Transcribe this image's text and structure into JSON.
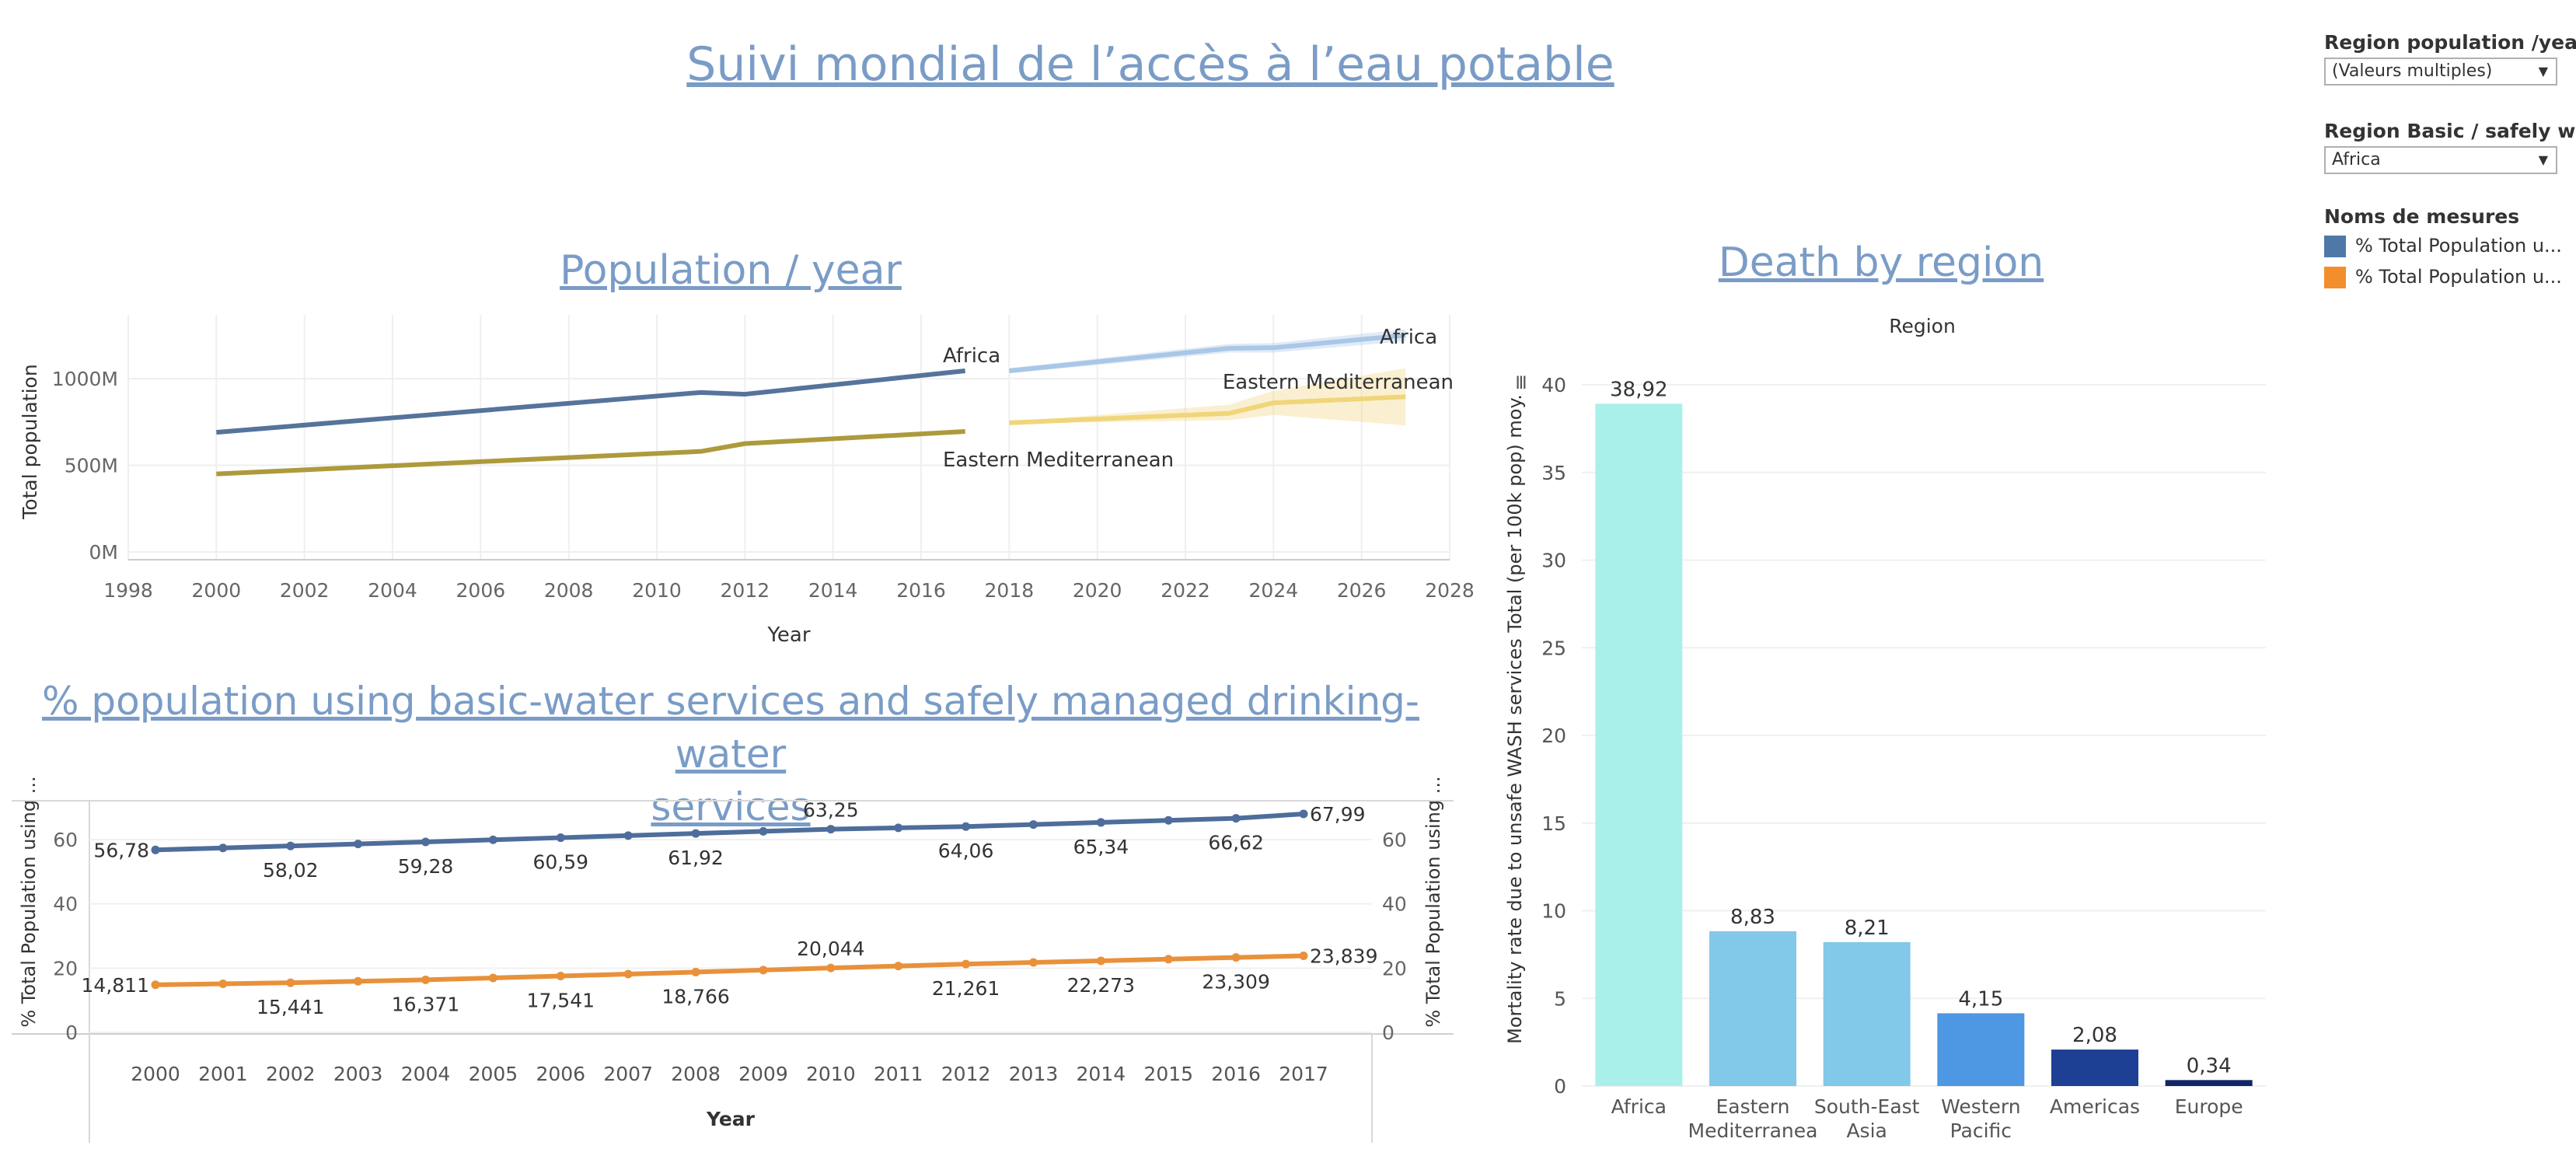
{
  "titles": {
    "main": "Suivi mondial de l’accès à l’eau potable",
    "population": "Population / year",
    "death": "Death by region",
    "pct_line1": "% population using basic-water services and safely managed drinking-water",
    "pct_line2": "services"
  },
  "filters": {
    "region_pop_label": "Region population /year",
    "region_pop_value": "(Valeurs multiples)",
    "region_basic_label": "Region Basic / safely wat...",
    "region_basic_value": "Africa"
  },
  "legend": {
    "title": "Noms de mesures",
    "items": [
      {
        "label": "% Total Population u...",
        "color": "#4e79a7"
      },
      {
        "label": "% Total Population u...",
        "color": "#f28e2b"
      }
    ]
  },
  "chart_data": [
    {
      "type": "line",
      "title": "Population / year",
      "xlabel": "Year",
      "ylabel": "Total population",
      "xlim": [
        1998,
        2028
      ],
      "x_ticks": [
        "1998",
        "2000",
        "2002",
        "2004",
        "2006",
        "2008",
        "2010",
        "2012",
        "2014",
        "2016",
        "2018",
        "2020",
        "2022",
        "2024",
        "2026",
        "2028"
      ],
      "y_ticks": [
        "0M",
        "500M",
        "1000M"
      ],
      "ylim": [
        0,
        1300
      ],
      "series": [
        {
          "name": "Africa",
          "color": "#56739b",
          "x": [
            2000,
            2011,
            2012,
            2017
          ],
          "y": [
            690,
            920,
            910,
            1045
          ]
        },
        {
          "name": "Eastern Mediterranean",
          "color": "#ad9a3c",
          "x": [
            2000,
            2011,
            2012,
            2017
          ],
          "y": [
            450,
            580,
            625,
            695
          ]
        }
      ],
      "forecast": [
        {
          "name": "Africa",
          "color": "#a9c7e6",
          "x": [
            2018,
            2023,
            2024,
            2027
          ],
          "y": [
            1045,
            1175,
            1178,
            1250
          ],
          "lower": [
            1030,
            1150,
            1150,
            1215
          ],
          "upper": [
            1060,
            1200,
            1205,
            1285
          ]
        },
        {
          "name": "Eastern Mediterranean",
          "color": "#f0d57a",
          "x": [
            2018,
            2023,
            2024,
            2027
          ],
          "y": [
            745,
            800,
            860,
            895
          ],
          "lower": [
            740,
            760,
            790,
            730
          ],
          "upper": [
            750,
            850,
            930,
            1060
          ]
        }
      ]
    },
    {
      "type": "line",
      "title": "% population using basic-water services and safely managed drinking-water services",
      "xlabel": "Year",
      "ylabel": "% Total Population using ...",
      "ylabel_right": "% Total Population using ...",
      "categories": [
        "2000",
        "2001",
        "2002",
        "2003",
        "2004",
        "2005",
        "2006",
        "2007",
        "2008",
        "2009",
        "2010",
        "2011",
        "2012",
        "2013",
        "2014",
        "2015",
        "2016",
        "2017"
      ],
      "y_ticks": [
        "0",
        "20",
        "40",
        "60"
      ],
      "ylim": [
        0,
        70
      ],
      "series": [
        {
          "color": "#4e6d9b",
          "values": [
            56.78,
            57.4,
            58.02,
            58.65,
            59.28,
            59.93,
            60.59,
            61.25,
            61.92,
            62.58,
            63.25,
            63.65,
            64.06,
            64.7,
            65.34,
            65.98,
            66.62,
            67.99
          ],
          "labels": {
            "0": "56,78",
            "2": "58,02",
            "4": "59,28",
            "6": "60,59",
            "8": "61,92",
            "10": "63,25",
            "12": "64,06",
            "14": "65,34",
            "16": "66,62",
            "17": "67,99"
          }
        },
        {
          "color": "#e8913a",
          "values": [
            14.811,
            15.12,
            15.441,
            15.9,
            16.371,
            16.95,
            17.541,
            18.15,
            18.766,
            19.4,
            20.044,
            20.65,
            21.261,
            21.77,
            22.273,
            22.79,
            23.309,
            23.839
          ],
          "labels": {
            "0": "14,811",
            "2": "15,441",
            "4": "16,371",
            "6": "17,541",
            "8": "18,766",
            "10": "20,044",
            "12": "21,261",
            "14": "22,273",
            "16": "23,309",
            "17": "23,839"
          }
        }
      ]
    },
    {
      "type": "bar",
      "title": "Death by region",
      "header": "Region",
      "ylabel": "Mortality rate due to unsafe WASH services Total (per 100k pop) moy.",
      "ylim": [
        0,
        40
      ],
      "y_ticks": [
        "0",
        "5",
        "10",
        "15",
        "20",
        "25",
        "30",
        "35",
        "40"
      ],
      "categories": [
        "Africa",
        "Eastern Mediterranean",
        "South-East Asia",
        "Western Pacific",
        "Americas",
        "Europe"
      ],
      "category_lines": [
        [
          "Africa"
        ],
        [
          "Eastern",
          "Mediterranea"
        ],
        [
          "South-East",
          "Asia"
        ],
        [
          "Western",
          "Pacific"
        ],
        [
          "Americas"
        ],
        [
          "Europe"
        ]
      ],
      "values": [
        38.92,
        8.83,
        8.21,
        4.15,
        2.08,
        0.34
      ],
      "value_labels": [
        "38,92",
        "8,83",
        "8,21",
        "4,15",
        "2,08",
        "0,34"
      ],
      "colors": [
        "#aaf0ea",
        "#82c8e8",
        "#82c8e8",
        "#4d97e3",
        "#1d3f94",
        "#0f2667"
      ]
    }
  ]
}
